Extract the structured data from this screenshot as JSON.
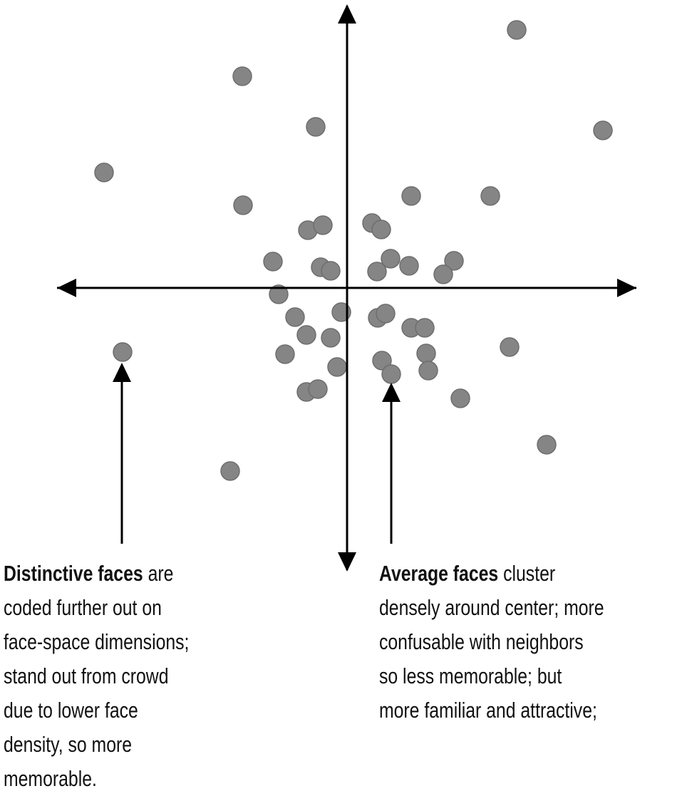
{
  "annotations": [
    {
      "lead": "Distinctive faces",
      "lines": [
        "are",
        "coded further out on",
        "face-space dimensions;",
        "stand out from crowd",
        "due to lower face",
        "density, so more",
        "memorable."
      ]
    },
    {
      "lead": "Average faces",
      "lines": [
        "cluster",
        "densely around center; more",
        "confusable with neighbors",
        "so less memorable; but",
        "more familiar and attractive;"
      ]
    }
  ]
}
